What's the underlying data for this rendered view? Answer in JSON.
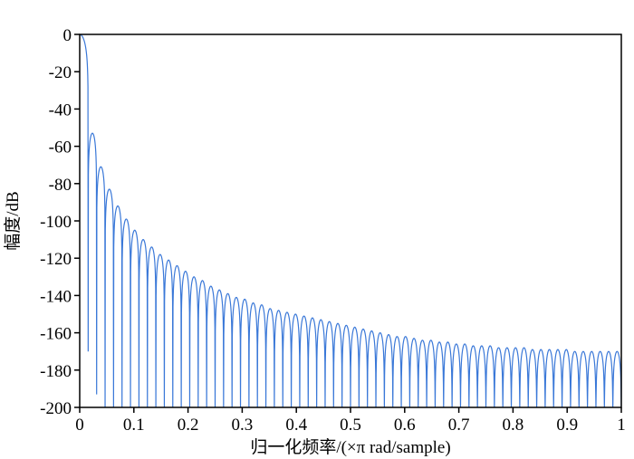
{
  "chart_data": {
    "type": "line",
    "title": "",
    "xlabel": "归一化频率/(×π rad/sample)",
    "ylabel": "幅度/dB",
    "xlim": [
      0,
      1
    ],
    "ylim": [
      -200,
      0
    ],
    "xticks": [
      0,
      0.1,
      0.2,
      0.3,
      0.4,
      0.5,
      0.6,
      0.7,
      0.8,
      0.9,
      1
    ],
    "xtick_labels": [
      "0",
      "0.1",
      "0.2",
      "0.3",
      "0.4",
      "0.5",
      "0.6",
      "0.7",
      "0.8",
      "0.9",
      "1"
    ],
    "yticks": [
      0,
      -20,
      -40,
      -60,
      -80,
      -100,
      -120,
      -140,
      -160,
      -180,
      -200
    ],
    "ytick_labels": [
      "0",
      "-20",
      "-40",
      "-60",
      "-80",
      "-100",
      "-120",
      "-140",
      "-160",
      "-180",
      "-200"
    ],
    "grid": false,
    "line_color": "#3a78d8",
    "mainlobe_peak_db": 0,
    "null_spacing": 0.015625,
    "null_depths_db": [
      -170,
      -193
    ],
    "sidelobe_peaks_db": [
      -53,
      -71,
      -83,
      -92,
      -99,
      -105,
      -110,
      -114,
      -118,
      -121,
      -124,
      -127,
      -130,
      -132,
      -135,
      -137,
      -139,
      -141,
      -142,
      -144,
      -145,
      -147,
      -148,
      -149,
      -150,
      -151,
      -152,
      -153,
      -154,
      -155,
      -156,
      -157,
      -158,
      -159,
      -160,
      -161,
      -162,
      -162,
      -163,
      -164,
      -164,
      -165,
      -165,
      -166,
      -166,
      -167,
      -167,
      -167,
      -168,
      -168,
      -168,
      -168,
      -169,
      -169,
      -169,
      -169,
      -169,
      -170,
      -170,
      -170,
      -170,
      -170,
      -170
    ]
  }
}
